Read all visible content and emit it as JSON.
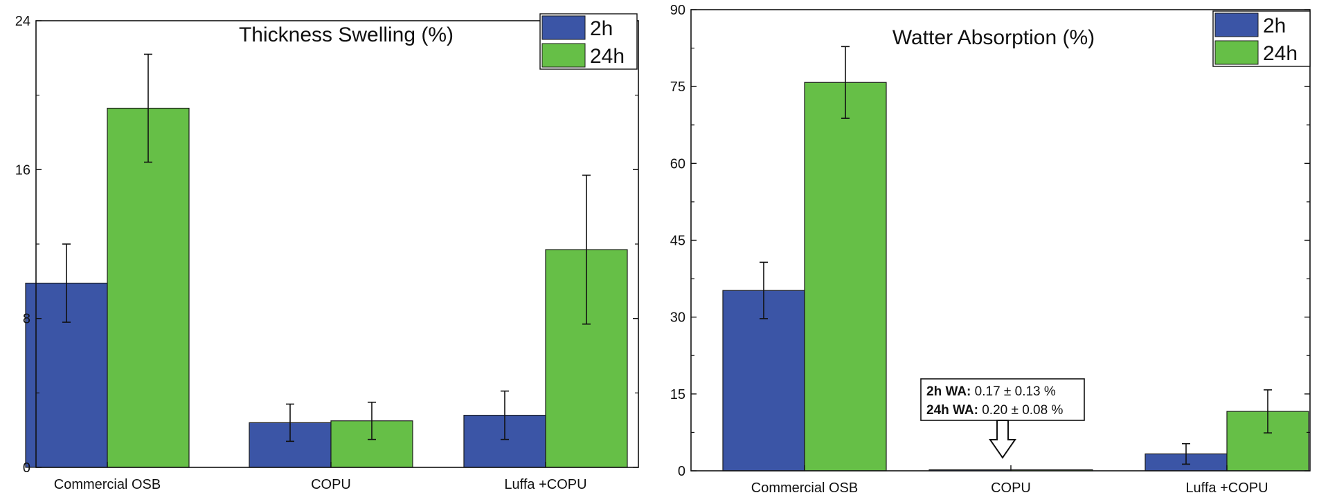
{
  "colors": {
    "h2": "#3b55a6",
    "h24": "#66bf47",
    "axis": "#111111"
  },
  "chart_data": [
    {
      "type": "bar",
      "title": "Thickness Swelling (%)",
      "categories": [
        "Commercial OSB",
        "COPU",
        "Luffa +COPU"
      ],
      "ylim": [
        0,
        24
      ],
      "yticks": [
        "0",
        "8",
        "16",
        "24"
      ],
      "grid": false,
      "legend_position": "top-right",
      "series": [
        {
          "name": "2h",
          "values": [
            9.9,
            2.4,
            2.8
          ],
          "errors": [
            2.1,
            1.0,
            1.3
          ]
        },
        {
          "name": "24h",
          "values": [
            19.3,
            2.5,
            11.7
          ],
          "errors": [
            2.9,
            1.0,
            4.0
          ]
        }
      ]
    },
    {
      "type": "bar",
      "title": "Watter Absorption (%)",
      "categories": [
        "Commercial OSB",
        "COPU",
        "Luffa +COPU"
      ],
      "ylim": [
        0,
        90
      ],
      "yticks": [
        "0",
        "15",
        "30",
        "45",
        "60",
        "75",
        "90"
      ],
      "grid": false,
      "legend_position": "top-right",
      "series": [
        {
          "name": "2h",
          "values": [
            35.2,
            0.17,
            3.3
          ],
          "errors": [
            5.5,
            0.13,
            2.0
          ]
        },
        {
          "name": "24h",
          "values": [
            75.8,
            0.2,
            11.6
          ],
          "errors": [
            7.0,
            0.08,
            4.2
          ]
        }
      ],
      "annotation": {
        "line1_label": "2h WA:",
        "line1_value": " 0.17 ± 0.13 %",
        "line2_label": "24h WA:",
        "line2_value": " 0.20 ± 0.08 %"
      }
    }
  ]
}
